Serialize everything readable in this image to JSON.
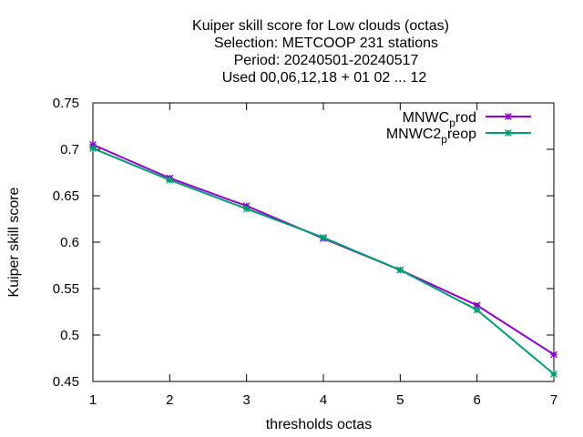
{
  "chart_data": {
    "type": "line",
    "title_lines": [
      "Kuiper skill score  for Low clouds (octas)",
      "Selection: METCOOP    231 stations",
      "Period: 20240501-20240517",
      "Used  00,06,12,18 + 01 02 ... 12"
    ],
    "xlabel": "thresholds octas",
    "ylabel": "Kuiper skill score",
    "x": [
      1,
      2,
      3,
      4,
      5,
      6,
      7
    ],
    "xlim": [
      1,
      7
    ],
    "ylim": [
      0.45,
      0.75
    ],
    "x_ticks": [
      "1",
      "2",
      "3",
      "4",
      "5",
      "6",
      "7"
    ],
    "y_ticks": [
      "0.45",
      "0.5",
      "0.55",
      "0.6",
      "0.65",
      "0.7",
      "0.75"
    ],
    "grid": false,
    "legend_position": "top-right",
    "series": [
      {
        "name": "MNWC_prod",
        "legend_main": "MNWC",
        "legend_sub": "p",
        "legend_rest": "rod",
        "color": "#9400d3",
        "values": [
          0.705,
          0.669,
          0.639,
          0.604,
          0.57,
          0.532,
          0.479
        ]
      },
      {
        "name": "MNWC2_preop",
        "legend_main": "MNWC2",
        "legend_sub": "p",
        "legend_rest": "reop",
        "color": "#009e73",
        "values": [
          0.701,
          0.667,
          0.636,
          0.605,
          0.57,
          0.527,
          0.458
        ]
      }
    ]
  }
}
